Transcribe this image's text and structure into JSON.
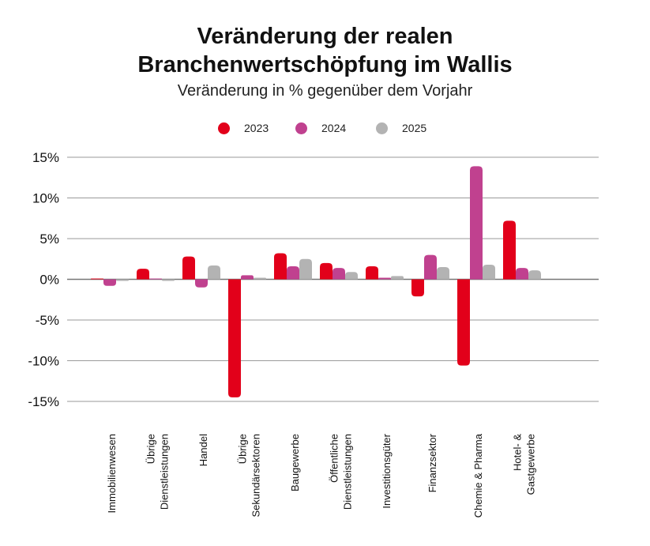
{
  "title": {
    "line1": "Veränderung der realen",
    "line2": "Branchenwertschöpfung im Wallis"
  },
  "subtitle": "Veränderung in % gegenüber dem Vorjahr",
  "colors": {
    "2023": "#e2001a",
    "2024": "#c0418f",
    "2025": "#b3b3b3",
    "grid": "#9a9a9a",
    "zero": "#777777"
  },
  "legend": [
    {
      "label": "2023",
      "color": "#e2001a"
    },
    {
      "label": "2024",
      "color": "#c0418f"
    },
    {
      "label": "2025",
      "color": "#b3b3b3"
    }
  ],
  "chart_data": {
    "type": "bar",
    "title": "Veränderung der realen Branchenwertschöpfung im Wallis",
    "subtitle": "Veränderung in % gegenüber dem Vorjahr",
    "ylim": [
      -15,
      15
    ],
    "yticks": [
      15,
      10,
      5,
      0,
      -5,
      -10,
      -15
    ],
    "ytick_labels": [
      "15%",
      "10%",
      "5%",
      "0%",
      "-5%",
      "-10%",
      "-15%"
    ],
    "grid": true,
    "legend_position": "top-center",
    "categories": [
      [
        "Immobilienwesen"
      ],
      [
        "Übrige",
        "Dienstleistungen"
      ],
      [
        "Handel"
      ],
      [
        "Übrige",
        "Sekundärsektoren"
      ],
      [
        "Baugewerbe"
      ],
      [
        "Öffentliche",
        "Dienstleistungen"
      ],
      [
        "Investitionsgüter"
      ],
      [
        "Finanzsektor"
      ],
      [
        "Chemie & Pharma"
      ],
      [
        "Hotel- &",
        "Gastgewerbe"
      ]
    ],
    "series": [
      {
        "name": "2023",
        "values": [
          0.1,
          1.3,
          2.8,
          -14.5,
          3.2,
          2.0,
          1.6,
          -2.1,
          -10.6,
          7.2
        ]
      },
      {
        "name": "2024",
        "values": [
          -0.8,
          0.1,
          -1.0,
          0.5,
          1.6,
          1.4,
          0.2,
          3.0,
          13.9,
          1.4
        ]
      },
      {
        "name": "2025",
        "values": [
          -0.2,
          -0.2,
          1.7,
          0.2,
          2.5,
          0.9,
          0.4,
          1.5,
          1.8,
          1.1
        ]
      }
    ]
  }
}
